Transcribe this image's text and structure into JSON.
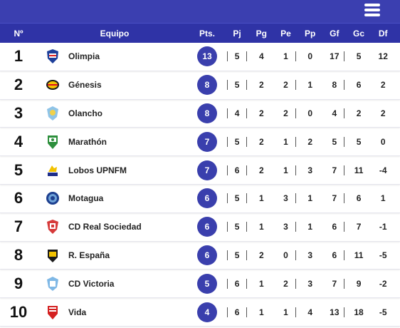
{
  "header": {
    "menu_icon": "hamburger-menu-icon",
    "colors": {
      "topbar": "#3b3fb0",
      "header": "#2f33a6",
      "badge": "#3a3fad"
    },
    "columns": [
      "Nº",
      "Equipo",
      "Pts.",
      "Pj",
      "Pg",
      "Pe",
      "Pp",
      "Gf",
      "Gc",
      "Df"
    ]
  },
  "rows": [
    {
      "pos": "1",
      "team": "Olimpia",
      "logo": "olimpia-crest-icon",
      "pts": "13",
      "pj": "5",
      "pg": "4",
      "pe": "1",
      "pp": "0",
      "gf": "17",
      "gc": "5",
      "df": "12"
    },
    {
      "pos": "2",
      "team": "Génesis",
      "logo": "genesis-crest-icon",
      "pts": "8",
      "pj": "5",
      "pg": "2",
      "pe": "2",
      "pp": "1",
      "gf": "8",
      "gc": "6",
      "df": "2"
    },
    {
      "pos": "3",
      "team": "Olancho",
      "logo": "olancho-crest-icon",
      "pts": "8",
      "pj": "4",
      "pg": "2",
      "pe": "2",
      "pp": "0",
      "gf": "4",
      "gc": "2",
      "df": "2"
    },
    {
      "pos": "4",
      "team": "Marathón",
      "logo": "marathon-crest-icon",
      "pts": "7",
      "pj": "5",
      "pg": "2",
      "pe": "1",
      "pp": "2",
      "gf": "5",
      "gc": "5",
      "df": "0"
    },
    {
      "pos": "5",
      "team": "Lobos UPNFM",
      "logo": "lobos-crest-icon",
      "pts": "7",
      "pj": "6",
      "pg": "2",
      "pe": "1",
      "pp": "3",
      "gf": "7",
      "gc": "11",
      "df": "-4"
    },
    {
      "pos": "6",
      "team": "Motagua",
      "logo": "motagua-crest-icon",
      "pts": "6",
      "pj": "5",
      "pg": "1",
      "pe": "3",
      "pp": "1",
      "gf": "7",
      "gc": "6",
      "df": "1"
    },
    {
      "pos": "7",
      "team": "CD Real Sociedad",
      "logo": "real-sociedad-crest-icon",
      "pts": "6",
      "pj": "5",
      "pg": "1",
      "pe": "3",
      "pp": "1",
      "gf": "6",
      "gc": "7",
      "df": "-1"
    },
    {
      "pos": "8",
      "team": "R. España",
      "logo": "real-espana-crest-icon",
      "pts": "6",
      "pj": "5",
      "pg": "2",
      "pe": "0",
      "pp": "3",
      "gf": "6",
      "gc": "11",
      "df": "-5"
    },
    {
      "pos": "9",
      "team": "CD Victoria",
      "logo": "victoria-crest-icon",
      "pts": "5",
      "pj": "6",
      "pg": "1",
      "pe": "2",
      "pp": "3",
      "gf": "7",
      "gc": "9",
      "df": "-2"
    },
    {
      "pos": "10",
      "team": "Vida",
      "logo": "vida-crest-icon",
      "pts": "4",
      "pj": "6",
      "pg": "1",
      "pe": "1",
      "pp": "4",
      "gf": "13",
      "gc": "18",
      "df": "-5"
    }
  ]
}
